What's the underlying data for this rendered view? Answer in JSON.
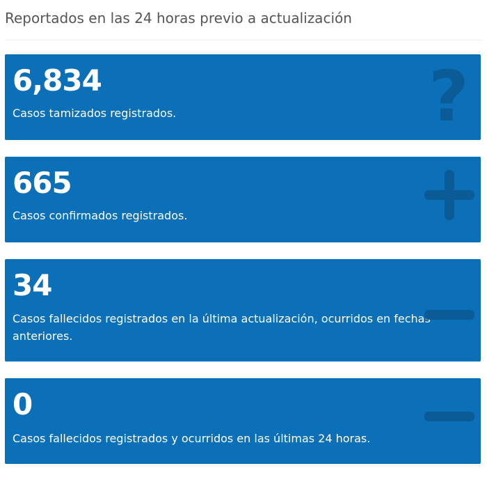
{
  "header": {
    "title": "Reportados en las 24 horas previo a actualización"
  },
  "cards": [
    {
      "number": "6,834",
      "description": "Casos tamizados registrados.",
      "icon": "question-mark-icon"
    },
    {
      "number": "665",
      "description": "Casos confirmados registrados.",
      "icon": "plus-icon"
    },
    {
      "number": "34",
      "description": "Casos fallecidos registrados en la última actualización, ocurridos en fechas anteriores.",
      "icon": "minus-icon"
    },
    {
      "number": "0",
      "description": "Casos fallecidos registrados y ocurridos en las últimas 24 horas.",
      "icon": "minus-icon"
    }
  ],
  "colors": {
    "card_background": "#0b70b8",
    "icon_shade": "#0a5b96",
    "header_text": "#555555"
  }
}
